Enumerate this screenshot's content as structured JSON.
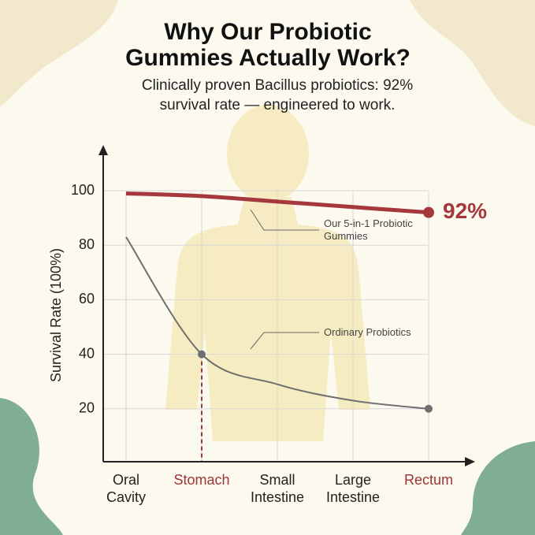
{
  "chart_data": {
    "type": "line",
    "title": "Why Our Probiotic Gummies Actually Work?",
    "subtitle": "Clinically proven Bacillus probiotics: 92% survival rate — engineered to work.",
    "y_label": "Survival Rate (100%)",
    "categories": [
      "Oral Cavity",
      "Stomach",
      "Small Intestine",
      "Large Intestine",
      "Rectum"
    ],
    "category_colors": [
      "#222222",
      "#9b3538",
      "#222222",
      "#222222",
      "#9b3538"
    ],
    "series": [
      {
        "name": "Our 5-in-1 Probiotic Gummies",
        "color": "#a5383c",
        "values": [
          99,
          98,
          96,
          94,
          92
        ],
        "value_labels": [
          null,
          null,
          null,
          null,
          "92%"
        ]
      },
      {
        "name": "Ordinary Probiotics",
        "color": "#6f6f6f",
        "values": [
          83,
          40,
          29,
          23,
          20
        ]
      }
    ],
    "ylim": [
      0,
      100
    ],
    "yticks": [
      20,
      40,
      60,
      80,
      100
    ],
    "grid": true
  }
}
